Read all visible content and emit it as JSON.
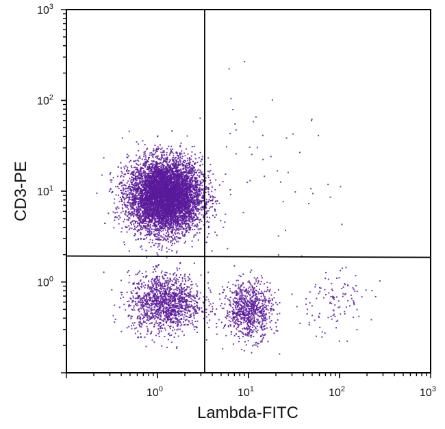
{
  "chart_data": {
    "type": "scatter",
    "subtype": "flow-cytometry-dot-plot",
    "xlabel": "Lambda-FITC",
    "ylabel": "CD3-PE",
    "xscale": "log",
    "yscale": "log",
    "xlim": [
      0.1,
      1000
    ],
    "ylim": [
      0.1,
      1000
    ],
    "x_tick_labels": [
      {
        "value": 1,
        "base": "10",
        "exp": "0"
      },
      {
        "value": 10,
        "base": "10",
        "exp": "1"
      },
      {
        "value": 100,
        "base": "10",
        "exp": "2"
      },
      {
        "value": 1000,
        "base": "10",
        "exp": "3"
      }
    ],
    "y_tick_labels": [
      {
        "value": 1,
        "base": "10",
        "exp": "0"
      },
      {
        "value": 10,
        "base": "10",
        "exp": "1"
      },
      {
        "value": 100,
        "base": "10",
        "exp": "2"
      },
      {
        "value": 1000,
        "base": "10",
        "exp": "3"
      }
    ],
    "grid": false,
    "quadrant_gates": {
      "x": 3.3,
      "y": 1.9
    },
    "dot_color": "#5b1a9a",
    "populations": [
      {
        "center": [
          1.2,
          9
        ],
        "log_sd": [
          0.2,
          0.2
        ],
        "count": 7000
      },
      {
        "center": [
          1.2,
          0.6
        ],
        "log_sd": [
          0.2,
          0.16
        ],
        "count": 1400
      },
      {
        "center": [
          10,
          0.5
        ],
        "log_sd": [
          0.13,
          0.16
        ],
        "count": 850
      },
      {
        "center": [
          80,
          0.6
        ],
        "log_sd": [
          0.22,
          0.18
        ],
        "count": 110
      },
      {
        "center": [
          15,
          15
        ],
        "log_sd": [
          0.4,
          0.45
        ],
        "count": 45
      }
    ]
  }
}
